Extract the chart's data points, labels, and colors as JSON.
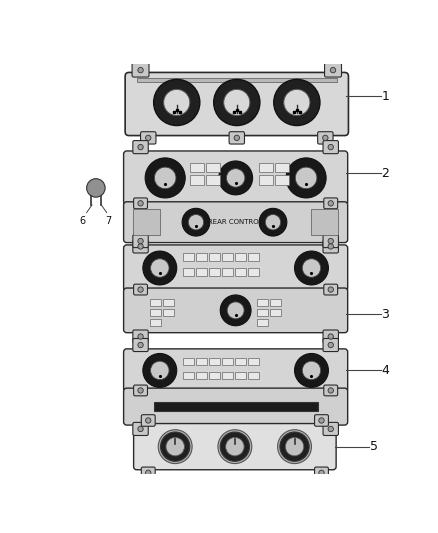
{
  "bg_color": "#ffffff",
  "line_color": "#2a2a2a",
  "panel_fc": "#e0e0e0",
  "panel_fc2": "#cccccc",
  "knob_outer": "#1a1a1a",
  "knob_inner": "#d0d0d0",
  "tab_fc": "#c8c8c8",
  "btn_fc": "#e8e8e8",
  "btn_ec": "#555555",
  "items": [
    {
      "id": 1,
      "label": "1"
    },
    {
      "id": 2,
      "label": "2"
    },
    {
      "id": 3,
      "label": "3"
    },
    {
      "id": 4,
      "label": "4"
    },
    {
      "id": 5,
      "label": "5"
    }
  ]
}
